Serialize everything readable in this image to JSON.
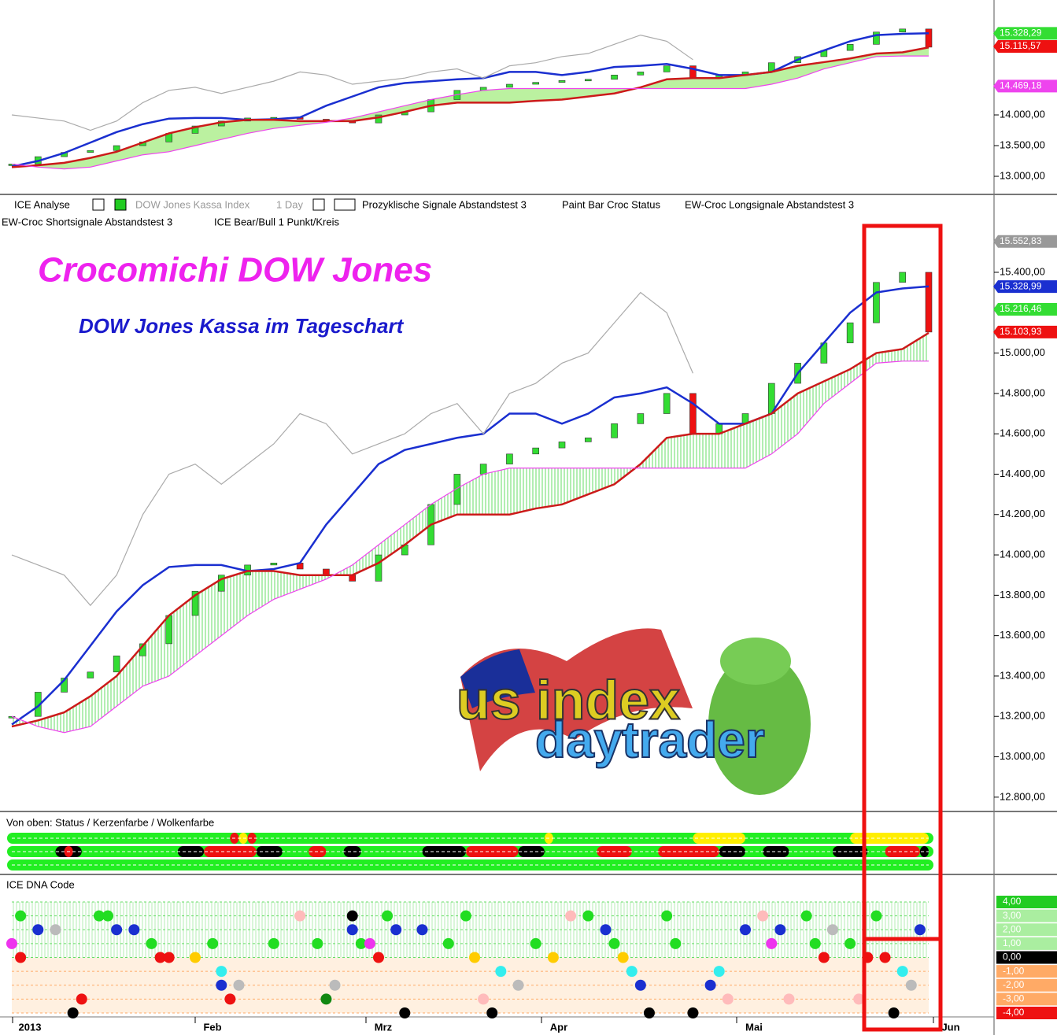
{
  "toolbar": {
    "line1": [
      "ICE Analyse",
      "DOW Jones Kassa Index",
      "1 Day",
      "Prozyklische Signale Abstandstest 3",
      "Paint Bar Croc Status",
      "EW-Croc Longsignale Abstandstest 3"
    ],
    "line2": [
      "EW-Croc Shortsignale Abstandstest 3",
      "ICE Bear/Bull 1 Punkt/Kreis"
    ]
  },
  "logo": [
    "us index",
    "daytrader"
  ],
  "x_axis": {
    "labels": [
      "2013",
      "Feb",
      "Mrz",
      "Apr",
      "Mai",
      "Jun"
    ]
  },
  "chart_data": [
    {
      "type": "line",
      "title": "Crocomichi DOW Jones",
      "subtitle": "DOW Jones Kassa im Tageschart",
      "ylim": [
        12733,
        15782
      ],
      "yticks": [
        {
          "value": 12800,
          "label": "12.800,00"
        },
        {
          "value": 13000,
          "label": "13.000,00"
        },
        {
          "value": 13200,
          "label": "13.200,00"
        },
        {
          "value": 13400,
          "label": "13.400,00"
        },
        {
          "value": 13600,
          "label": "13.600,00"
        },
        {
          "value": 13800,
          "label": "13.800,00"
        },
        {
          "value": 14000,
          "label": "14.000,00"
        },
        {
          "value": 14200,
          "label": "14.200,00"
        },
        {
          "value": 14400,
          "label": "14.400,00"
        },
        {
          "value": 14600,
          "label": "14.600,00"
        },
        {
          "value": 14800,
          "label": "14.800,00"
        },
        {
          "value": 15000,
          "label": "15.000,00"
        },
        {
          "value": 15400,
          "label": "15.400,00"
        }
      ],
      "price_tags": [
        {
          "value": 15552.83,
          "label": "15.552,83",
          "color": "#999999"
        },
        {
          "value": 15328.99,
          "label": "15.328,99",
          "color": "#1a2fd0"
        },
        {
          "value": 15216.46,
          "label": "15.216,46",
          "color": "#33dd33"
        },
        {
          "value": 15103.93,
          "label": "15.103,93",
          "color": "#ee1111"
        }
      ],
      "series": [
        {
          "color": "#33dd33",
          "style": "candles",
          "values": [
            13200,
            13320,
            13390,
            13420,
            13500,
            13560,
            13700,
            13820,
            13900,
            13950,
            13960,
            13930,
            13900,
            13870,
            14000,
            14050,
            14250,
            14400,
            14450,
            14500,
            14530,
            14560,
            14580,
            14650,
            14700,
            14800,
            14600,
            14650,
            14700,
            14850,
            14950,
            15050,
            15150,
            15350,
            15400,
            15104
          ]
        },
        {
          "color": "#1a2fd0",
          "style": "line",
          "values": [
            13160,
            13250,
            13380,
            13550,
            13720,
            13850,
            13940,
            13950,
            13950,
            13920,
            13930,
            13960,
            14150,
            14300,
            14450,
            14520,
            14550,
            14580,
            14600,
            14700,
            14700,
            14650,
            14700,
            14780,
            14800,
            14830,
            14750,
            14650,
            14650,
            14700,
            14900,
            15050,
            15200,
            15300,
            15320,
            15330
          ]
        },
        {
          "color": "#cc1a1a",
          "style": "line",
          "values": [
            13150,
            13180,
            13220,
            13300,
            13400,
            13550,
            13700,
            13800,
            13880,
            13920,
            13920,
            13900,
            13900,
            13900,
            13960,
            14050,
            14150,
            14200,
            14200,
            14200,
            14230,
            14250,
            14300,
            14350,
            14450,
            14580,
            14600,
            14600,
            14650,
            14700,
            14800,
            14860,
            14920,
            15000,
            15020,
            15100
          ]
        },
        {
          "color": "#ee44ee",
          "style": "cloud",
          "values": [
            13200,
            13150,
            13120,
            13150,
            13250,
            13350,
            13400,
            13500,
            13600,
            13700,
            13780,
            13830,
            13880,
            13950,
            14050,
            14150,
            14250,
            14330,
            14400,
            14430,
            14430,
            14430,
            14430,
            14430,
            14430,
            14430,
            14430,
            14430,
            14430,
            14500,
            14600,
            14750,
            14850,
            14950,
            14960,
            14960
          ]
        },
        {
          "color": "#aaaaaa",
          "style": "line",
          "values": [
            14000,
            13950,
            13900,
            13750,
            13900,
            14200,
            14400,
            14450,
            14350,
            14450,
            14550,
            14700,
            14650,
            14500,
            14550,
            14600,
            14700,
            14750,
            14600,
            14800,
            14850,
            14950,
            15000,
            15150,
            15300,
            15200,
            14900,
            null,
            null,
            null,
            null,
            null,
            null,
            null,
            null,
            null
          ]
        }
      ]
    },
    {
      "type": "line",
      "ylim": [
        12731,
        15872
      ],
      "yticks": [
        {
          "value": 13000,
          "label": "13.000,00"
        },
        {
          "value": 13500,
          "label": "13.500,00"
        },
        {
          "value": 14000,
          "label": "14.000,00"
        }
      ],
      "price_tags": [
        {
          "value": 15328.29,
          "label": "15.328,29",
          "color": "#33dd33"
        },
        {
          "value": 15115.57,
          "label": "15.115,57",
          "color": "#ee1111"
        },
        {
          "value": 14469.18,
          "label": "14.469,18",
          "color": "#ee44ee"
        }
      ]
    },
    {
      "type": "status",
      "title": "Von oben: Status / Kerzenfarbe / Wolkenfarbe",
      "xlim": [
        0,
        105
      ],
      "rows": [
        {
          "color": "#22ee22",
          "segments": [
            {
              "x": [
                25,
                26
              ],
              "color": "#ee1111"
            },
            {
              "x": [
                26,
                27
              ],
              "color": "#ffee00"
            },
            {
              "x": [
                27,
                28
              ],
              "color": "#ee1111"
            },
            {
              "x": [
                61,
                62
              ],
              "color": "#ffee00"
            },
            {
              "x": [
                78,
                84
              ],
              "color": "#ffee00"
            },
            {
              "x": [
                96,
                105
              ],
              "color": "#ffee00"
            }
          ]
        },
        {
          "color": "#22ee22",
          "segments": [
            {
              "x": [
                5,
                8
              ],
              "color": "#000000"
            },
            {
              "x": [
                6,
                7
              ],
              "color": "#ee1111"
            },
            {
              "x": [
                19,
                22
              ],
              "color": "#000000"
            },
            {
              "x": [
                22,
                28
              ],
              "color": "#ee1111"
            },
            {
              "x": [
                28,
                31
              ],
              "color": "#000000"
            },
            {
              "x": [
                34,
                36
              ],
              "color": "#ee1111"
            },
            {
              "x": [
                38,
                40
              ],
              "color": "#000000"
            },
            {
              "x": [
                47,
                52
              ],
              "color": "#000000"
            },
            {
              "x": [
                52,
                58
              ],
              "color": "#ee1111"
            },
            {
              "x": [
                58,
                61
              ],
              "color": "#000000"
            },
            {
              "x": [
                67,
                71
              ],
              "color": "#ee1111"
            },
            {
              "x": [
                74,
                81
              ],
              "color": "#ee1111"
            },
            {
              "x": [
                81,
                84
              ],
              "color": "#000000"
            },
            {
              "x": [
                86,
                89
              ],
              "color": "#000000"
            },
            {
              "x": [
                94,
                98
              ],
              "color": "#000000"
            },
            {
              "x": [
                100,
                104
              ],
              "color": "#ee1111"
            },
            {
              "x": [
                104,
                105
              ],
              "color": "#000000"
            }
          ]
        },
        {
          "color": "#22ee22",
          "segments": []
        }
      ]
    },
    {
      "type": "scatter",
      "title": "ICE DNA Code",
      "xlim": [
        0,
        105
      ],
      "ylim": [
        -4.17,
        5.93
      ],
      "yticks": [
        {
          "value": 4,
          "label": "4,00",
          "color": "#22cc22"
        },
        {
          "value": 3,
          "label": "3,00",
          "color": "#aaeea0"
        },
        {
          "value": 2,
          "label": "2,00",
          "color": "#aaeea0"
        },
        {
          "value": 1,
          "label": "1,00",
          "color": "#aaeea0"
        },
        {
          "value": 0,
          "label": "0,00",
          "color": "#000000"
        },
        {
          "value": -1,
          "label": "-1,00",
          "color": "#ffaa66"
        },
        {
          "value": -2,
          "label": "-2,00",
          "color": "#ffaa66"
        },
        {
          "value": -3,
          "label": "-3,00",
          "color": "#ffaa66"
        },
        {
          "value": -4,
          "label": "-4,00",
          "color": "#ee1111"
        }
      ],
      "points": {
        "x": [
          1,
          3,
          5,
          0,
          1,
          7,
          8,
          10,
          11,
          12,
          14,
          16,
          17,
          18,
          21,
          23,
          24,
          24,
          25,
          26,
          30,
          33,
          35,
          36,
          37,
          39,
          39,
          40,
          41,
          42,
          43,
          44,
          45,
          47,
          50,
          52,
          53,
          54,
          55,
          56,
          58,
          60,
          62,
          64,
          66,
          68,
          69,
          70,
          71,
          72,
          73,
          75,
          76,
          78,
          80,
          81,
          82,
          84,
          86,
          87,
          88,
          89,
          91,
          92,
          93,
          94,
          96,
          97,
          98,
          99,
          100,
          101,
          102,
          103,
          104
        ],
        "values": [
          3,
          2,
          2,
          1,
          0,
          -4,
          -3,
          3,
          3,
          2,
          2,
          1,
          0,
          0,
          0,
          1,
          -1,
          -2,
          -3,
          -2,
          1,
          3,
          1,
          -3,
          -2,
          3,
          2,
          1,
          1,
          0,
          3,
          2,
          -4,
          2,
          1,
          3,
          0,
          -3,
          -4,
          -1,
          -2,
          1,
          0,
          3,
          3,
          2,
          1,
          0,
          -1,
          -2,
          -4,
          3,
          1,
          -4,
          -2,
          -1,
          -3,
          2,
          3,
          1,
          2,
          -3,
          3,
          1,
          0,
          2,
          1,
          -3,
          0,
          3,
          0,
          -4,
          -1,
          -2,
          2
        ],
        "colors": [
          "#22dd22",
          "#1a2fd0",
          "#bbbbbb",
          "#ee33ee",
          "#ee1111",
          "#000000",
          "#ee1111",
          "#22dd22",
          "#22dd22",
          "#1a2fd0",
          "#1a2fd0",
          "#22dd22",
          "#ee1111",
          "#ee1111",
          "#ffcc00",
          "#22dd22",
          "#33eeee",
          "#1a2fd0",
          "#ee1111",
          "#bbbbbb",
          "#22dd22",
          "#ffbbbb",
          "#22dd22",
          "#118811",
          "#bbbbbb",
          "#000000",
          "#1a2fd0",
          "#22dd22",
          "#ee33ee",
          "#ee1111",
          "#22dd22",
          "#1a2fd0",
          "#000000",
          "#1a2fd0",
          "#22dd22",
          "#22dd22",
          "#ffcc00",
          "#ffbbbb",
          "#000000",
          "#33eeee",
          "#bbbbbb",
          "#22dd22",
          "#ffcc00",
          "#ffbbbb",
          "#22dd22",
          "#1a2fd0",
          "#22dd22",
          "#ffcc00",
          "#33eeee",
          "#1a2fd0",
          "#000000",
          "#22dd22",
          "#22dd22",
          "#000000",
          "#1a2fd0",
          "#33eeee",
          "#ffbbbb",
          "#1a2fd0",
          "#ffbbbb",
          "#ee33ee",
          "#1a2fd0",
          "#ffbbbb",
          "#22dd22",
          "#22dd22",
          "#ee1111",
          "#bbbbbb",
          "#22dd22",
          "#ffbbbb",
          "#ee1111",
          "#22dd22",
          "#ee1111",
          "#000000",
          "#33eeee",
          "#bbbbbb",
          "#1a2fd0"
        ]
      }
    }
  ]
}
